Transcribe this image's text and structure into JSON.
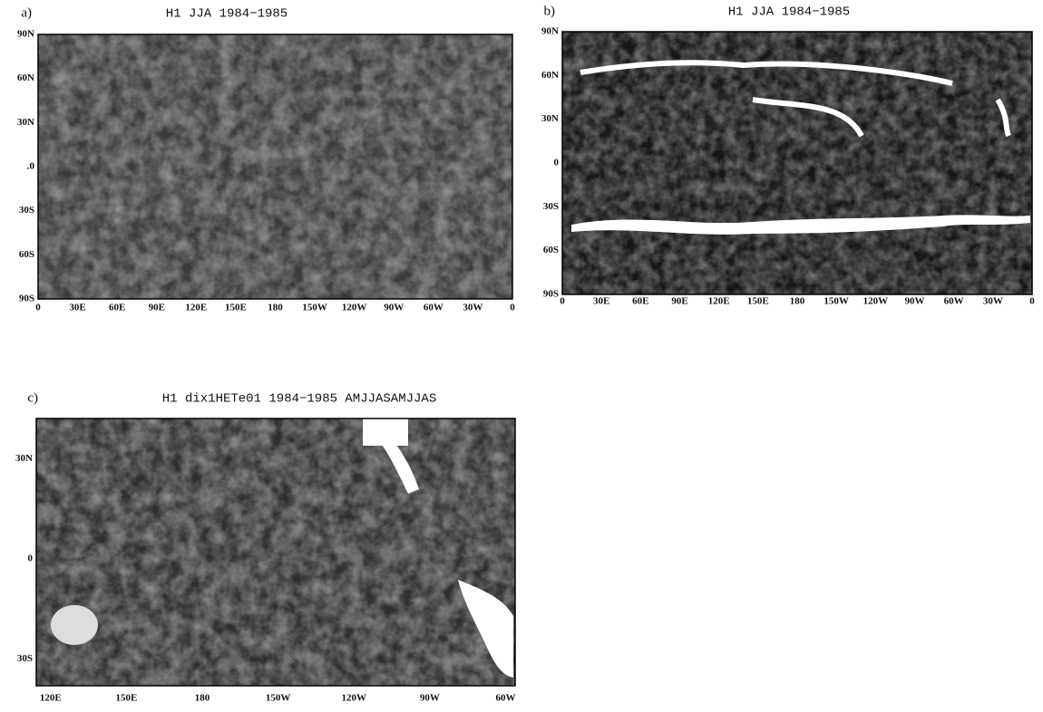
{
  "panels": [
    {
      "label": "a)",
      "title": "H1 JJA 1984−1985",
      "yticks": [
        "90N",
        "60N",
        "30N",
        ".0",
        "30S",
        "60S",
        "90S"
      ],
      "xticks": [
        "0",
        "30E",
        "60E",
        "90E",
        "120E",
        "150E",
        "180",
        "150W",
        "120W",
        "90W",
        "60W",
        "30W",
        "0"
      ]
    },
    {
      "label": "b)",
      "title": "H1 JJA 1984−1985",
      "yticks": [
        "90N",
        "60N",
        "30N",
        "0",
        "30S",
        "60S",
        "90S"
      ],
      "xticks": [
        "0",
        "30E",
        "60E",
        "90E",
        "120E",
        "150E",
        "180",
        "150W",
        "120W",
        "90W",
        "60W",
        "30W",
        "0"
      ]
    },
    {
      "label": "c)",
      "title": "H1 dix1HETe01 1984−1985 AMJJASAMJJAS",
      "yticks": [
        "30N",
        "0",
        "30S"
      ],
      "xticks": [
        "120E",
        "150E",
        "180",
        "150W",
        "120W",
        "90W",
        "60W"
      ]
    }
  ]
}
